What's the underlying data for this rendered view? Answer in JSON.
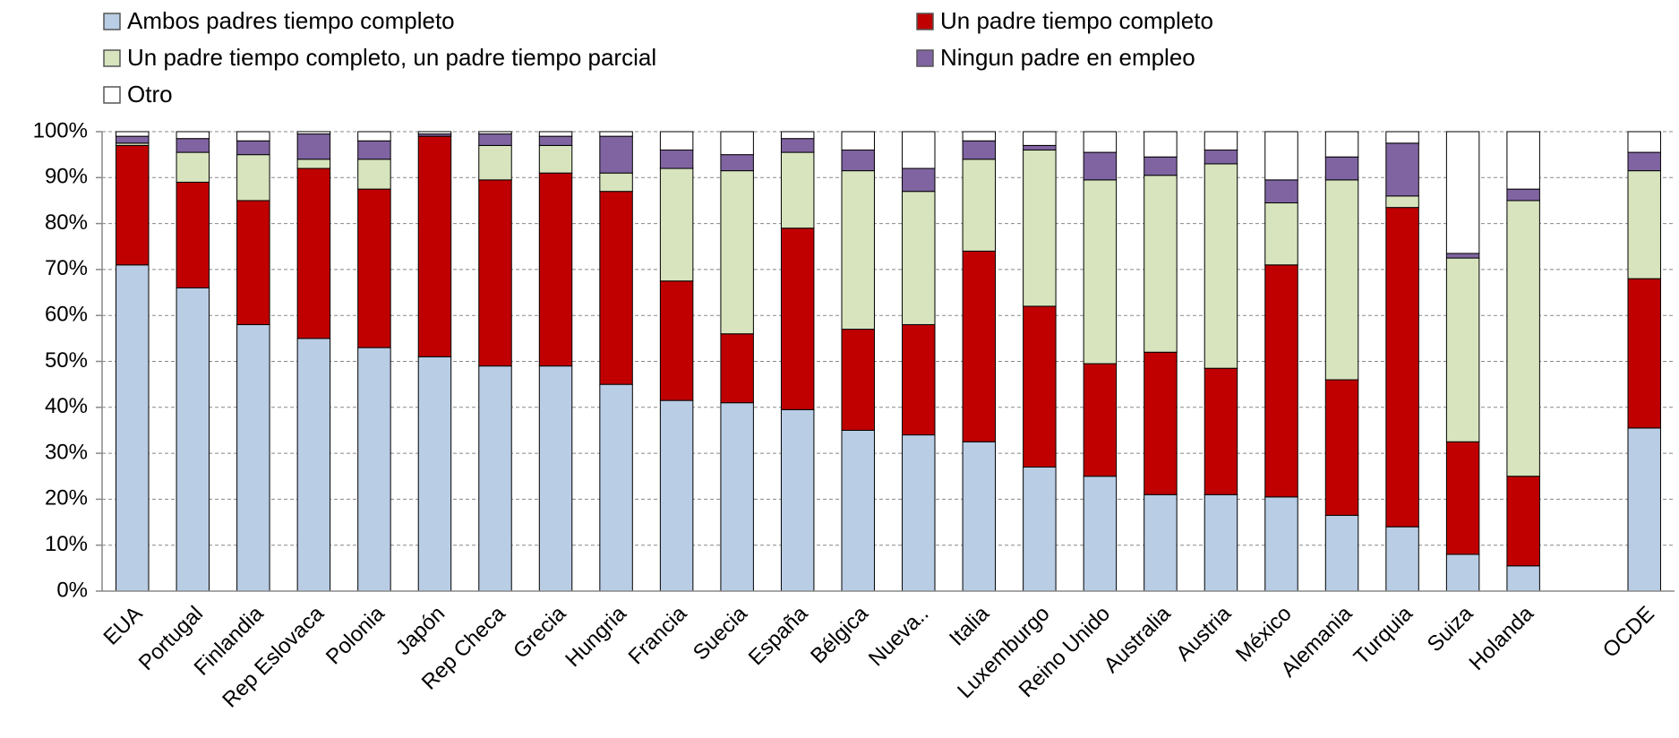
{
  "chart_data": {
    "type": "stacked_bar",
    "categories": [
      "EUA",
      "Portugal",
      "Finlandia",
      "Rep Eslovaca",
      "Polonia",
      "Japón",
      "Rep Checa",
      "Grecia",
      "Hungria",
      "Francia",
      "Suecia",
      "España",
      "Bélgica",
      "Nueva..",
      "Italia",
      "Luxemburgo",
      "Reino Unido",
      "Australia",
      "Austria",
      "México",
      "Alemania",
      "Turquia",
      "Suiza",
      "Holanda",
      null,
      "OCDE"
    ],
    "series": [
      {
        "name": "Ambos padres tiempo completo",
        "color": "#b9cde5",
        "values": [
          71,
          66,
          58,
          55,
          53,
          51,
          49,
          49,
          45,
          41.5,
          41,
          39.5,
          35,
          34,
          32.5,
          27,
          25,
          21,
          21,
          20.5,
          16.5,
          14,
          8,
          5.5,
          null,
          35.5
        ]
      },
      {
        "name": "Un padre tiempo completo",
        "color": "#c00000",
        "values": [
          26,
          23,
          27,
          37,
          34.5,
          48,
          40.5,
          42,
          42,
          26,
          15,
          39.5,
          22,
          24,
          41.5,
          35,
          24.5,
          31,
          27.5,
          50.5,
          29.5,
          69.5,
          24.5,
          19.5,
          null,
          32.5
        ]
      },
      {
        "name": "Un padre tiempo completo, un padre tiempo parcial",
        "color": "#d7e4bd",
        "values": [
          0.5,
          6.5,
          10,
          2,
          6.5,
          0,
          7.5,
          6,
          4,
          24.5,
          35.5,
          16.5,
          34.5,
          29,
          20,
          34,
          40,
          38.5,
          44.5,
          13.5,
          43.5,
          2.5,
          40,
          60,
          null,
          23.5
        ]
      },
      {
        "name": "Ningun padre en empleo",
        "color": "#8064a2",
        "values": [
          1.5,
          3,
          3,
          5.5,
          4,
          0.5,
          2.5,
          2,
          8,
          4,
          3.5,
          3,
          4.5,
          5,
          4,
          1,
          6,
          4,
          3,
          5,
          5,
          11.5,
          1,
          2.5,
          null,
          4
        ]
      },
      {
        "name": "Otro",
        "color": "#ffffff",
        "values": [
          1,
          1.5,
          2,
          0.5,
          2,
          0.5,
          0.5,
          1,
          1,
          4,
          5,
          1.5,
          4,
          8,
          2,
          3,
          4.5,
          5.5,
          4,
          10.5,
          5.5,
          2.5,
          26.5,
          12.5,
          null,
          4.5
        ]
      }
    ],
    "ylim": [
      0,
      100
    ],
    "yticks": [
      {
        "value": 0,
        "label": "0%"
      },
      {
        "value": 10,
        "label": "10%"
      },
      {
        "value": 20,
        "label": "20%"
      },
      {
        "value": 30,
        "label": "30%"
      },
      {
        "value": 40,
        "label": "40%"
      },
      {
        "value": 50,
        "label": "50%"
      },
      {
        "value": 60,
        "label": "60%"
      },
      {
        "value": 70,
        "label": "70%"
      },
      {
        "value": 80,
        "label": "80%"
      },
      {
        "value": 90,
        "label": "90%"
      },
      {
        "value": 100,
        "label": "100%"
      }
    ],
    "grid": true
  }
}
